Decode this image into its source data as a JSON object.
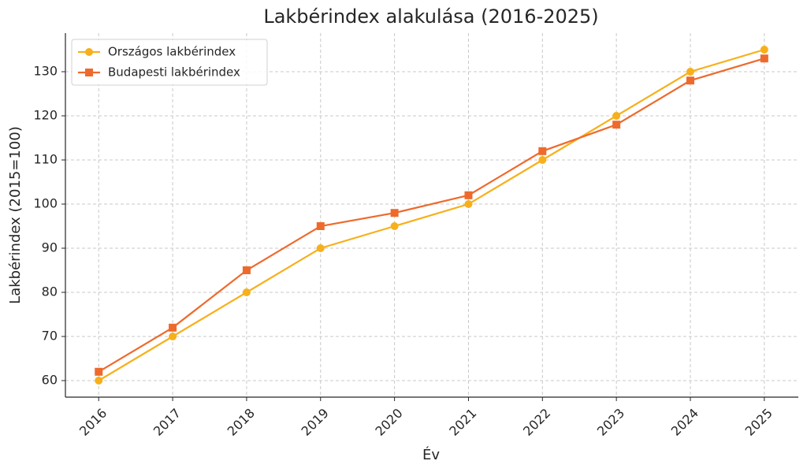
{
  "chart_data": {
    "type": "line",
    "title": "Lakbérindex alakulása (2016-2025)",
    "x_label": "Év",
    "y_label": "Lakbérindex (2015=100)",
    "x": [
      2016,
      2017,
      2018,
      2019,
      2020,
      2021,
      2022,
      2023,
      2024,
      2025
    ],
    "series": [
      {
        "name": "Országos lakbérindex",
        "color": "#f7b01b",
        "marker": "circle",
        "values": [
          60,
          70,
          80,
          90,
          95,
          100,
          110,
          120,
          130,
          135
        ]
      },
      {
        "name": "Budapesti lakbérindex",
        "color": "#ee6a2c",
        "marker": "square",
        "values": [
          62,
          72,
          85,
          95,
          98,
          102,
          112,
          118,
          128,
          133
        ]
      }
    ],
    "xlim": [
      2015.55,
      2025.46
    ],
    "xticks": [
      2016,
      2017,
      2018,
      2019,
      2020,
      2021,
      2022,
      2023,
      2024,
      2025
    ],
    "ylim": [
      56.25,
      138.75
    ],
    "yticks": [
      60,
      70,
      80,
      90,
      100,
      110,
      120,
      130
    ],
    "grid": true,
    "legend": "upper-left"
  }
}
